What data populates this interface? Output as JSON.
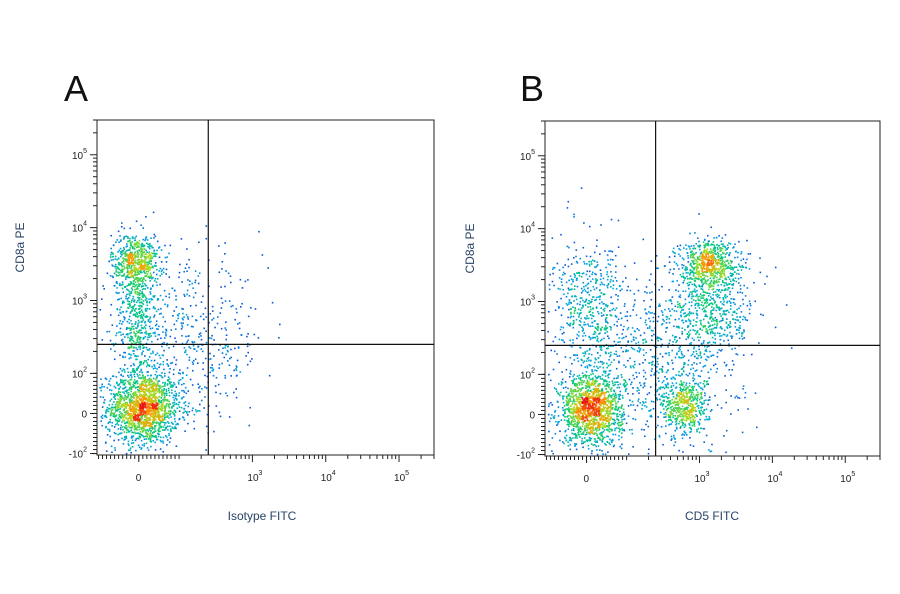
{
  "panels": [
    {
      "letter": "A"
    },
    {
      "letter": "B"
    }
  ],
  "chart_data": [
    {
      "type": "scatter",
      "subtype": "flow-cytometry-density-dot-plot",
      "panel_label": "A",
      "xlabel": "Isotype FITC",
      "ylabel": "CD8a PE",
      "x_scale": "biexponential",
      "y_scale": "biexponential",
      "x_ticks": [
        {
          "label": "0",
          "value": 0
        },
        {
          "label": "10",
          "exp": "3",
          "value": 1000
        },
        {
          "label": "10",
          "exp": "4",
          "value": 10000
        },
        {
          "label": "10",
          "exp": "5",
          "value": 100000
        }
      ],
      "y_ticks": [
        {
          "label": "10",
          "exp": "5",
          "value": 100000
        },
        {
          "label": "10",
          "exp": "4",
          "value": 10000
        },
        {
          "label": "10",
          "exp": "3",
          "value": 1000
        },
        {
          "label": "10",
          "exp": "2",
          "value": 100
        },
        {
          "label": "0",
          "value": 0
        },
        {
          "label": "-10",
          "exp": "2",
          "value": -100
        }
      ],
      "gates": {
        "x": 250,
        "y": 250
      },
      "populations": [
        {
          "x": 10,
          "y": 15,
          "spread_x": 0.45,
          "spread_y": 0.45,
          "density": "very high",
          "count": 1600
        },
        {
          "x": -10,
          "y": 3500,
          "spread_x": 0.3,
          "spread_y": 0.35,
          "density": "high",
          "count": 550
        },
        {
          "x": -5,
          "y": 600,
          "spread_x": 0.3,
          "spread_y": 0.9,
          "density": "medium",
          "count": 550
        },
        {
          "x": 150,
          "y": 250,
          "spread_x": 0.9,
          "spread_y": 1.0,
          "density": "low",
          "count": 450
        }
      ]
    },
    {
      "type": "scatter",
      "subtype": "flow-cytometry-density-dot-plot",
      "panel_label": "B",
      "xlabel": "CD5 FITC",
      "ylabel": "CD8a PE",
      "x_scale": "biexponential",
      "y_scale": "biexponential",
      "x_ticks": [
        {
          "label": "0",
          "value": 0
        },
        {
          "label": "10",
          "exp": "3",
          "value": 1000
        },
        {
          "label": "10",
          "exp": "4",
          "value": 10000
        },
        {
          "label": "10",
          "exp": "5",
          "value": 100000
        }
      ],
      "y_ticks": [
        {
          "label": "10",
          "exp": "5",
          "value": 100000
        },
        {
          "label": "10",
          "exp": "4",
          "value": 10000
        },
        {
          "label": "10",
          "exp": "3",
          "value": 1000
        },
        {
          "label": "10",
          "exp": "2",
          "value": 100
        },
        {
          "label": "0",
          "value": 0
        },
        {
          "label": "-10",
          "exp": "2",
          "value": -100
        }
      ],
      "gates": {
        "x": 250,
        "y": 250
      },
      "populations": [
        {
          "x": 10,
          "y": 15,
          "spread_x": 0.4,
          "spread_y": 0.45,
          "density": "very high",
          "count": 1400
        },
        {
          "x": 600,
          "y": 20,
          "spread_x": 0.3,
          "spread_y": 0.4,
          "density": "high",
          "count": 500
        },
        {
          "x": 1300,
          "y": 3500,
          "spread_x": 0.35,
          "spread_y": 0.3,
          "density": "high",
          "count": 600
        },
        {
          "x": 1500,
          "y": 800,
          "spread_x": 0.5,
          "spread_y": 0.6,
          "density": "medium",
          "count": 500
        },
        {
          "x": 5,
          "y": 800,
          "spread_x": 0.45,
          "spread_y": 0.8,
          "density": "medium",
          "count": 500
        },
        {
          "x": 300,
          "y": 200,
          "spread_x": 1.0,
          "spread_y": 1.1,
          "density": "low",
          "count": 700
        }
      ]
    }
  ]
}
